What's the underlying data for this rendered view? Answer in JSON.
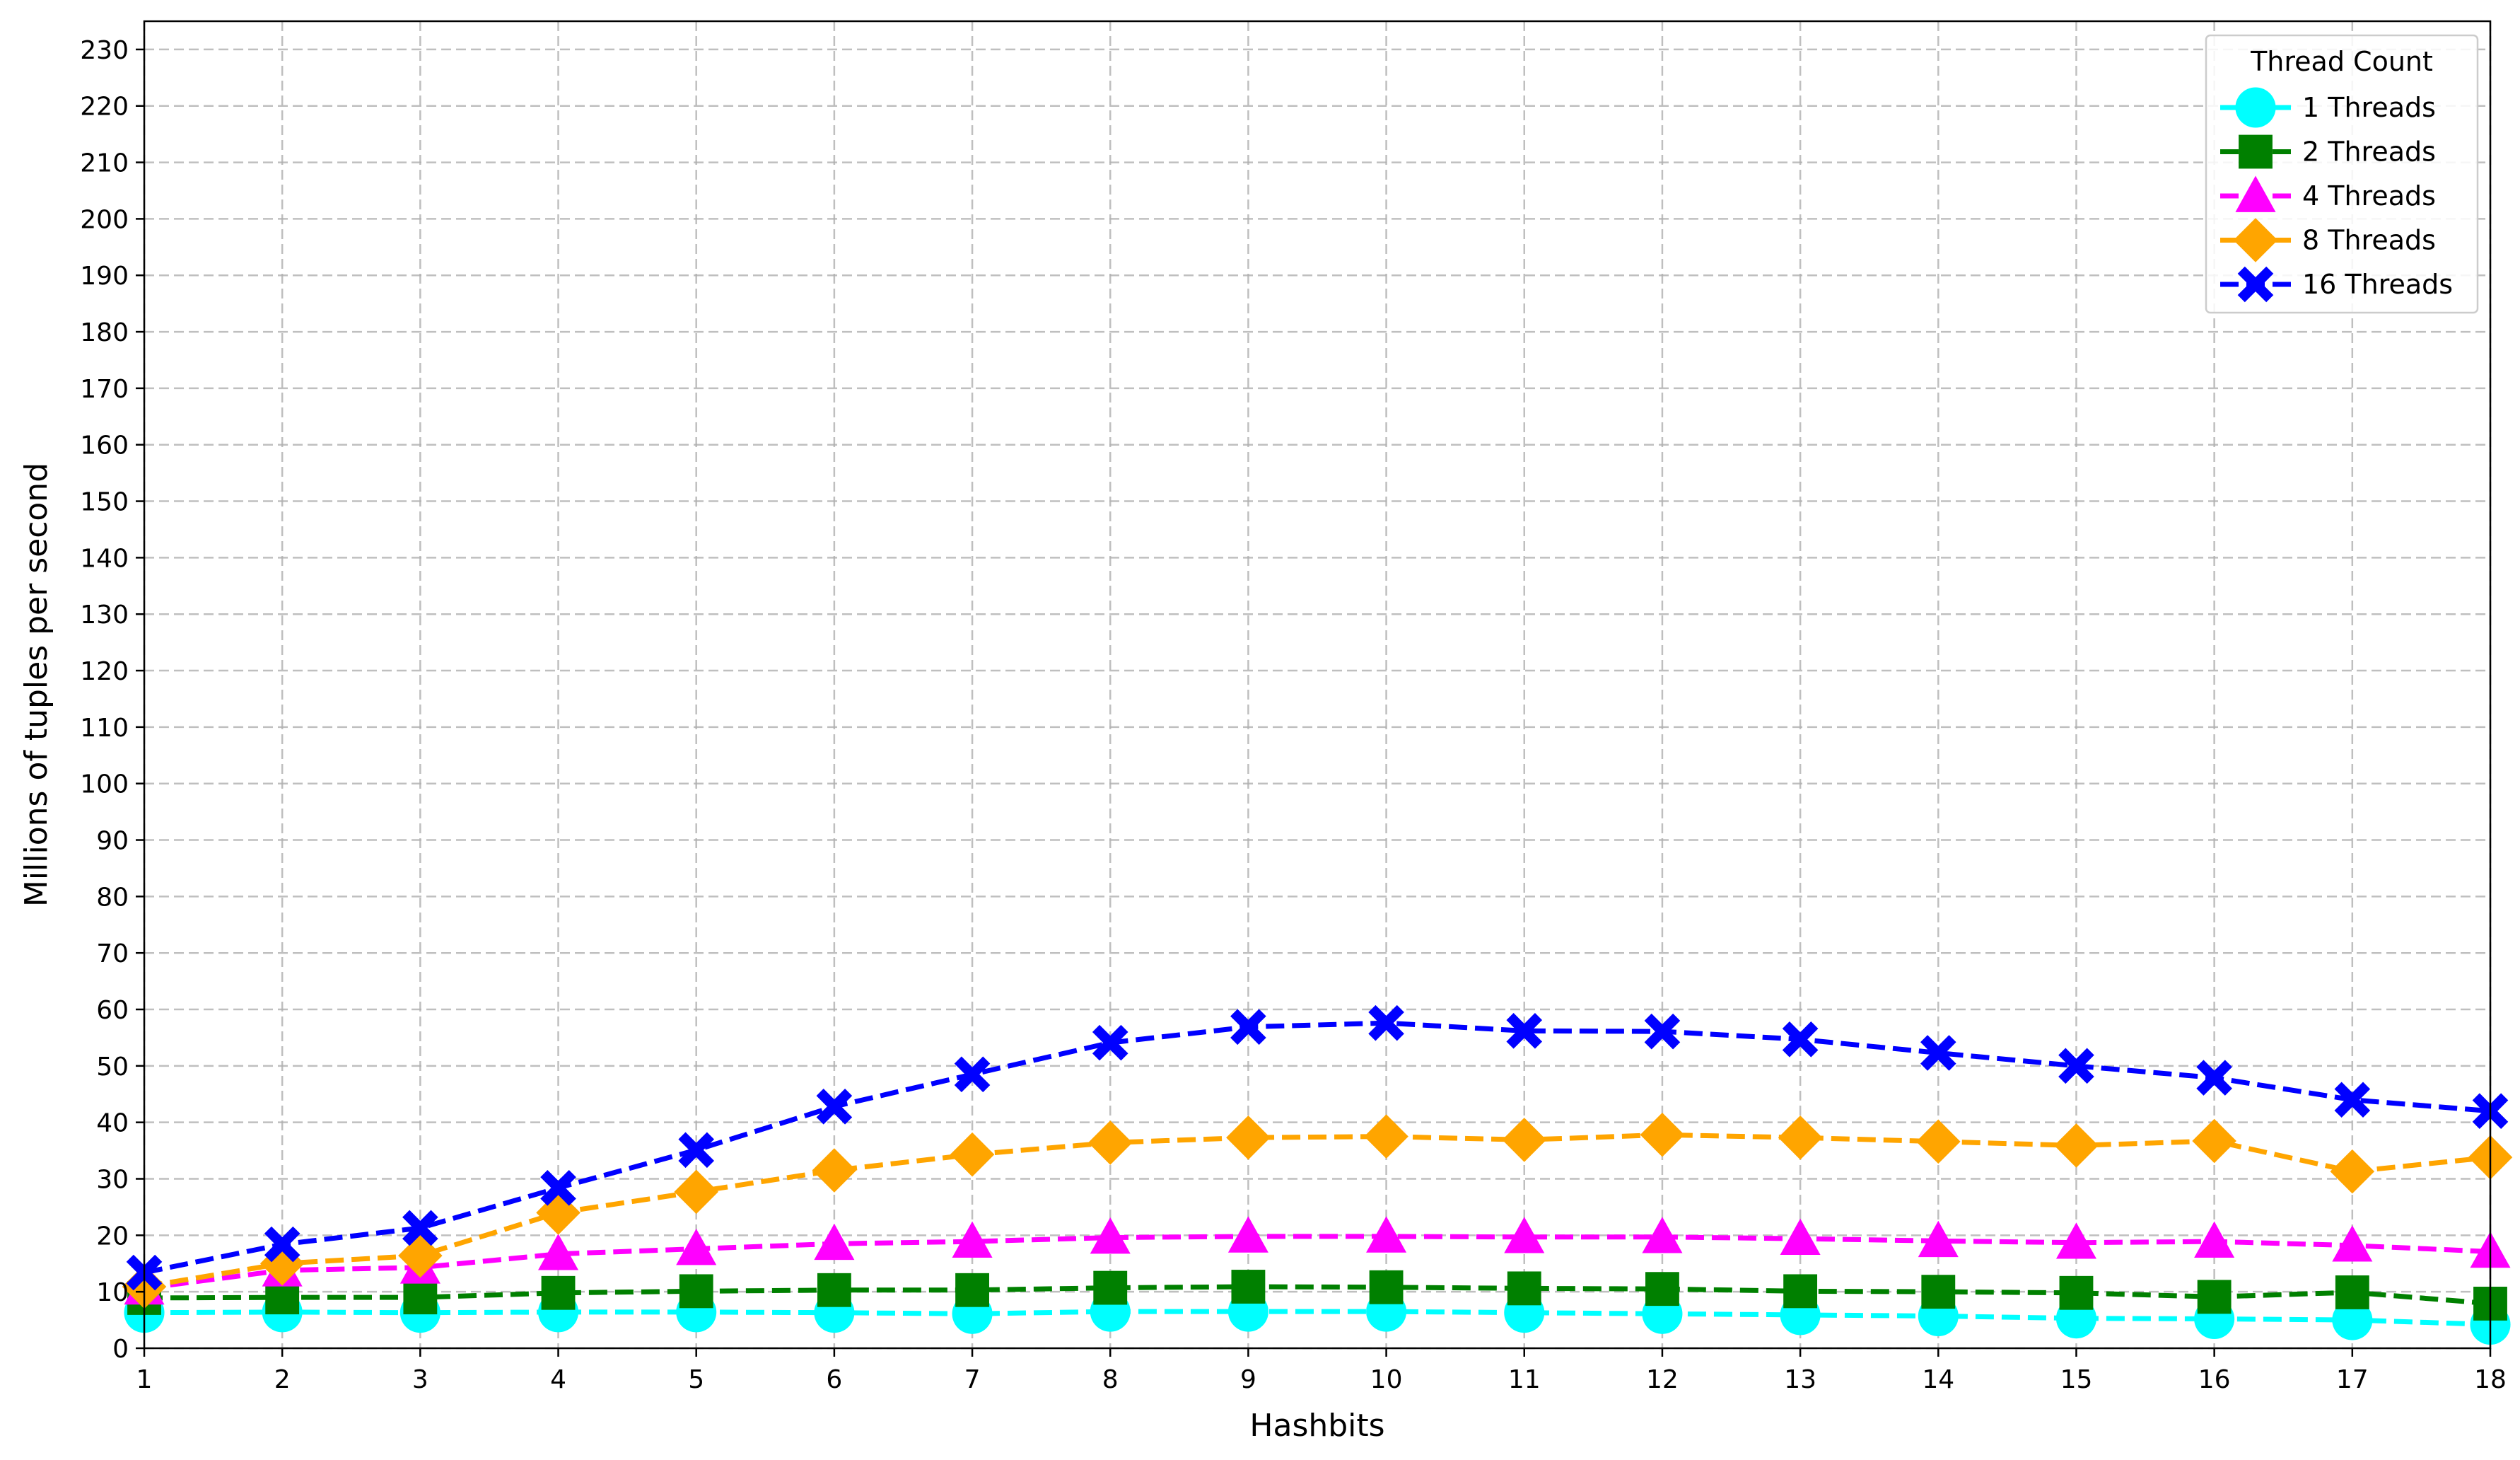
{
  "chart_data": {
    "type": "line",
    "xlabel": "Hashbits",
    "ylabel": "Millions of tuples per second",
    "x": [
      1,
      2,
      3,
      4,
      5,
      6,
      7,
      8,
      9,
      10,
      11,
      12,
      13,
      14,
      15,
      16,
      17,
      18
    ],
    "xlim": [
      1,
      18
    ],
    "ylim": [
      0,
      235
    ],
    "xticks": [
      1,
      2,
      3,
      4,
      5,
      6,
      7,
      8,
      9,
      10,
      11,
      12,
      13,
      14,
      15,
      16,
      17,
      18
    ],
    "yticks": [
      0,
      10,
      20,
      30,
      40,
      50,
      60,
      70,
      80,
      90,
      100,
      110,
      120,
      130,
      140,
      150,
      160,
      170,
      180,
      190,
      200,
      210,
      220,
      230
    ],
    "grid": true,
    "legend": {
      "title": "Thread Count",
      "placement": "top-right"
    },
    "series": [
      {
        "name": "1 Threads",
        "color": "#00ffff",
        "marker": "circle",
        "values": [
          6.3,
          6.4,
          6.3,
          6.4,
          6.4,
          6.3,
          6.1,
          6.5,
          6.5,
          6.5,
          6.3,
          6.1,
          5.9,
          5.7,
          5.3,
          5.2,
          5.0,
          4.2
        ]
      },
      {
        "name": "2 Threads",
        "color": "#008000",
        "marker": "square",
        "values": [
          8.9,
          9.0,
          9.0,
          9.8,
          10.1,
          10.3,
          10.3,
          10.7,
          10.9,
          10.8,
          10.6,
          10.5,
          10.1,
          10.0,
          9.8,
          9.1,
          9.9,
          7.9
        ]
      },
      {
        "name": "4 Threads",
        "color": "#ff00ff",
        "marker": "triangle",
        "values": [
          10.6,
          13.8,
          14.3,
          16.7,
          17.6,
          18.5,
          18.9,
          19.6,
          19.8,
          19.8,
          19.7,
          19.7,
          19.4,
          19.0,
          18.7,
          18.9,
          18.2,
          17.1
        ]
      },
      {
        "name": "8 Threads",
        "color": "#ffa500",
        "marker": "diamond",
        "values": [
          10.9,
          15.0,
          16.4,
          24.0,
          27.7,
          31.5,
          34.3,
          36.4,
          37.3,
          37.5,
          36.9,
          37.8,
          37.3,
          36.6,
          35.9,
          36.7,
          31.3,
          33.8
        ]
      },
      {
        "name": "16 Threads",
        "color": "#0000ff",
        "marker": "x",
        "values": [
          13.4,
          18.4,
          21.3,
          28.4,
          35.1,
          42.8,
          48.5,
          54.1,
          56.9,
          57.6,
          56.2,
          56.1,
          54.7,
          52.3,
          50.0,
          47.9,
          44.0,
          42.0
        ]
      }
    ]
  }
}
